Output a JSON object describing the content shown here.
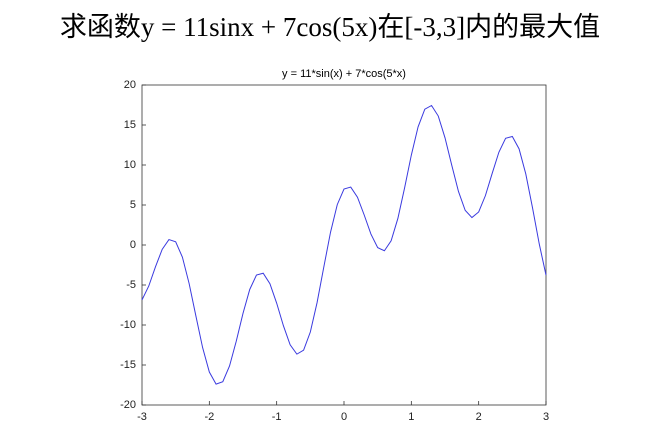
{
  "heading": "求函数y = 11sinx + 7cos(5x)在[-3,3]内的最大值",
  "chart_data": {
    "type": "line",
    "title": "y = 11*sin(x) + 7*cos(5*x)",
    "x": [
      -3,
      -2.9,
      -2.8,
      -2.7,
      -2.6,
      -2.5,
      -2.4,
      -2.3,
      -2.2,
      -2.1,
      -2,
      -1.9,
      -1.8,
      -1.7,
      -1.6,
      -1.5,
      -1.4,
      -1.3,
      -1.2,
      -1.1,
      -1,
      -0.9,
      -0.8,
      -0.7,
      -0.6,
      -0.5,
      -0.4,
      -0.3,
      -0.2,
      -0.1,
      0,
      0.1,
      0.2,
      0.3,
      0.4,
      0.5,
      0.6,
      0.7,
      0.8,
      0.9,
      1,
      1.1,
      1.2,
      1.3,
      1.4,
      1.5,
      1.6,
      1.7,
      1.8,
      1.9,
      2,
      2.1,
      2.2,
      2.3,
      2.4,
      2.5,
      2.6,
      2.7,
      2.8,
      2.9,
      3
    ],
    "series": [
      {
        "color": "#3a3adf",
        "values": [
          -6.87,
          -5.14,
          -2.73,
          -0.54,
          0.68,
          0.4,
          -1.52,
          -4.82,
          -8.86,
          -12.82,
          -15.88,
          -17.39,
          -17.09,
          -15.12,
          -12.01,
          -8.55,
          -5.56,
          -3.76,
          -3.53,
          -4.84,
          -7.27,
          -10.09,
          -12.47,
          -13.64,
          -13.14,
          -10.88,
          -7.2,
          -2.76,
          1.6,
          5.05,
          7.0,
          7.24,
          5.97,
          3.75,
          1.37,
          -0.33,
          -0.72,
          0.53,
          3.32,
          7.14,
          11.24,
          14.76,
          16.97,
          17.44,
          16.12,
          13.4,
          9.98,
          6.69,
          4.33,
          3.43,
          4.13,
          6.17,
          8.93,
          11.59,
          13.34,
          13.56,
          12.02,
          8.87,
          4.64,
          0.12,
          -3.77
        ]
      }
    ],
    "xlim": [
      -3,
      3
    ],
    "ylim": [
      -20,
      20
    ],
    "xticks": [
      -3,
      -2,
      -1,
      0,
      1,
      2,
      3
    ],
    "yticks": [
      -20,
      -15,
      -10,
      -5,
      0,
      5,
      10,
      15,
      20
    ]
  }
}
